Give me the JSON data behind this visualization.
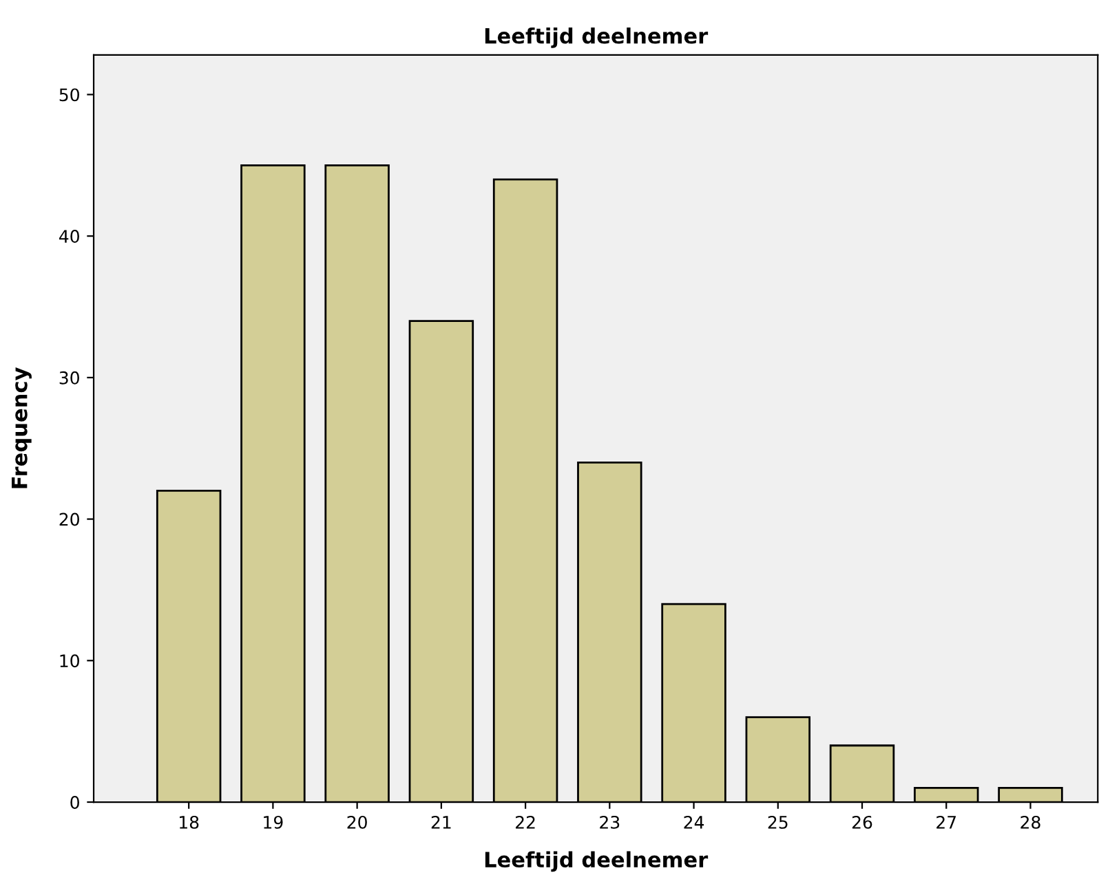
{
  "chart_data": {
    "type": "bar",
    "title": "Leeftijd deelnemer",
    "xlabel": "Leeftijd deelnemer",
    "ylabel": "Frequency",
    "categories": [
      "18",
      "19",
      "20",
      "21",
      "22",
      "23",
      "24",
      "25",
      "26",
      "27",
      "28"
    ],
    "values": [
      22,
      45,
      45,
      34,
      44,
      24,
      14,
      6,
      4,
      1,
      1
    ],
    "color": "#d3ce96",
    "ylim": [
      0,
      52.8
    ],
    "yticks": [
      0,
      10,
      20,
      30,
      40,
      50
    ],
    "grid": false,
    "legend": false
  }
}
